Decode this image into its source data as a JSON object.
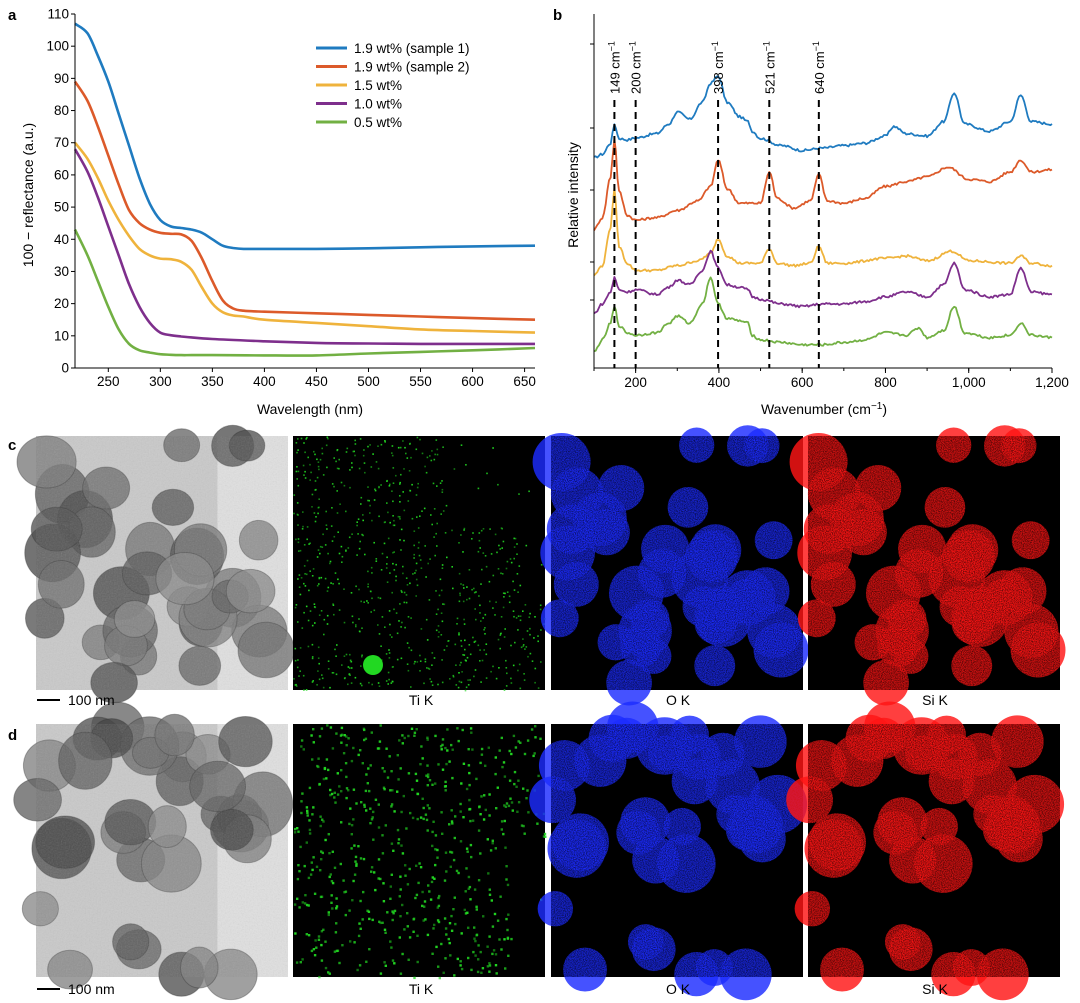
{
  "panels": {
    "a": "a",
    "b": "b",
    "c": "c",
    "d": "d"
  },
  "colors": {
    "s1": "#1f7bc0",
    "s2": "#dc5a2a",
    "s3": "#efb33c",
    "s4": "#7e2f8c",
    "s5": "#72b043",
    "ti": "#22d822",
    "o": "#1c2cff",
    "si": "#ff1515"
  },
  "chart_data": [
    {
      "type": "line",
      "xlabel": "Wavelength (nm)",
      "ylabel": "100 − reflectance (a.u.)",
      "xlim": [
        218,
        660
      ],
      "ylim": [
        0,
        110
      ],
      "xticks": [
        "250",
        "300",
        "350",
        "400",
        "450",
        "500",
        "550",
        "600",
        "650"
      ],
      "yticks": [
        "0",
        "10",
        "20",
        "30",
        "40",
        "50",
        "60",
        "70",
        "80",
        "90",
        "100",
        "110"
      ],
      "legend_position": "top-right",
      "series": [
        {
          "name": "1.9 wt% (sample 1)",
          "color_key": "s1",
          "x": [
            218,
            230,
            240,
            250,
            260,
            270,
            280,
            290,
            300,
            310,
            320,
            330,
            340,
            350,
            360,
            370,
            380,
            400,
            450,
            500,
            550,
            600,
            660
          ],
          "y": [
            107,
            104,
            97,
            89,
            79,
            69,
            59,
            51,
            46,
            44,
            43.5,
            43,
            42,
            40,
            38,
            37.3,
            37,
            37,
            37,
            37.2,
            37.5,
            37.8,
            38
          ]
        },
        {
          "name": "1.9 wt% (sample 2)",
          "color_key": "s2",
          "x": [
            218,
            230,
            240,
            250,
            260,
            270,
            280,
            290,
            300,
            310,
            320,
            330,
            340,
            350,
            360,
            370,
            380,
            400,
            450,
            500,
            550,
            600,
            660
          ],
          "y": [
            89,
            83,
            75,
            66,
            57,
            49,
            45,
            43,
            42,
            41.7,
            41.5,
            39.5,
            34,
            27,
            21,
            18.5,
            17.8,
            17.5,
            17,
            16.5,
            16,
            15.5,
            15
          ]
        },
        {
          "name": "1.5 wt%",
          "color_key": "s3",
          "x": [
            218,
            230,
            240,
            250,
            260,
            270,
            280,
            290,
            300,
            310,
            320,
            330,
            340,
            350,
            360,
            370,
            380,
            400,
            450,
            500,
            550,
            600,
            660
          ],
          "y": [
            70,
            65,
            59,
            52,
            46,
            41,
            37,
            35,
            34,
            33.8,
            33,
            30.5,
            25,
            20,
            17.3,
            16.3,
            16,
            15,
            14,
            13,
            12,
            11.5,
            11
          ]
        },
        {
          "name": "1.0 wt%",
          "color_key": "s4",
          "x": [
            218,
            230,
            240,
            250,
            260,
            270,
            280,
            290,
            300,
            310,
            320,
            330,
            350,
            400,
            450,
            500,
            550,
            600,
            660
          ],
          "y": [
            68,
            61,
            53,
            44,
            35,
            26,
            19,
            14,
            11,
            10.2,
            9.8,
            9.5,
            9,
            8.3,
            7.8,
            7.6,
            7.5,
            7.5,
            7.5
          ]
        },
        {
          "name": "0.5 wt%",
          "color_key": "s5",
          "x": [
            218,
            230,
            240,
            250,
            260,
            270,
            280,
            290,
            300,
            310,
            320,
            330,
            350,
            400,
            450,
            500,
            550,
            600,
            660
          ],
          "y": [
            43,
            35,
            27,
            19,
            12,
            7.5,
            5.5,
            4.8,
            4.3,
            4.1,
            4,
            4,
            4,
            3.9,
            3.9,
            4.5,
            5,
            5.5,
            6.2
          ]
        }
      ]
    },
    {
      "type": "line",
      "xlabel": "Wavenumber (cm−1)",
      "ylabel": "Relative intensity",
      "xlim": [
        100,
        1200
      ],
      "xticks": [
        "200",
        "400",
        "600",
        "800",
        "1,000",
        "1,200"
      ],
      "annotations": [
        {
          "x": 149,
          "label": "149 cm−1"
        },
        {
          "x": 200,
          "label": "200 cm−1"
        },
        {
          "x": 398,
          "label": "398 cm−1"
        },
        {
          "x": 521,
          "label": "521 cm−1"
        },
        {
          "x": 640,
          "label": "640 cm−1"
        }
      ],
      "series": [
        {
          "color_key": "s1",
          "offset": 4.0,
          "x": [
            100,
            120,
            140,
            149,
            160,
            180,
            200,
            250,
            280,
            300,
            330,
            360,
            380,
            398,
            420,
            450,
            470,
            480,
            500,
            550,
            600,
            650,
            700,
            750,
            800,
            820,
            850,
            900,
            940,
            965,
            990,
            1050,
            1100,
            1125,
            1150,
            1200
          ],
          "y": [
            0.05,
            0.12,
            0.35,
            0.75,
            0.45,
            0.42,
            0.46,
            0.55,
            0.75,
            1.0,
            0.85,
            1.2,
            1.6,
            1.75,
            1.2,
            0.9,
            0.8,
            0.6,
            0.45,
            0.3,
            0.2,
            0.25,
            0.3,
            0.35,
            0.5,
            0.7,
            0.55,
            0.5,
            0.8,
            1.4,
            0.75,
            0.6,
            0.8,
            1.35,
            0.8,
            0.75
          ]
        },
        {
          "color_key": "s2",
          "offset": 2.55,
          "x": [
            100,
            120,
            140,
            149,
            160,
            180,
            200,
            250,
            300,
            350,
            380,
            398,
            420,
            450,
            500,
            521,
            540,
            580,
            620,
            640,
            660,
            700,
            750,
            800,
            850,
            900,
            950,
            1000,
            1050,
            1100,
            1125,
            1150,
            1200
          ],
          "y": [
            0.0,
            0.25,
            1.1,
            1.9,
            0.8,
            0.3,
            0.2,
            0.25,
            0.4,
            0.6,
            0.9,
            1.45,
            0.85,
            0.55,
            0.55,
            1.2,
            0.65,
            0.45,
            0.6,
            1.15,
            0.6,
            0.55,
            0.65,
            0.9,
            1.0,
            1.1,
            1.3,
            1.05,
            1.0,
            1.2,
            1.45,
            1.2,
            1.25
          ]
        },
        {
          "color_key": "s3",
          "offset": 1.6,
          "x": [
            100,
            120,
            140,
            149,
            160,
            180,
            200,
            250,
            300,
            350,
            380,
            398,
            420,
            450,
            500,
            521,
            540,
            580,
            620,
            640,
            660,
            700,
            800,
            850,
            900,
            960,
            1000,
            1100,
            1125,
            1150,
            1200
          ],
          "y": [
            0.0,
            0.2,
            1.0,
            1.8,
            0.6,
            0.25,
            0.1,
            0.1,
            0.2,
            0.3,
            0.45,
            0.75,
            0.4,
            0.25,
            0.25,
            0.55,
            0.25,
            0.2,
            0.25,
            0.6,
            0.25,
            0.25,
            0.35,
            0.4,
            0.3,
            0.5,
            0.3,
            0.25,
            0.4,
            0.25,
            0.2
          ]
        },
        {
          "color_key": "s4",
          "offset": 0.8,
          "x": [
            100,
            120,
            140,
            149,
            160,
            180,
            200,
            250,
            280,
            300,
            330,
            360,
            380,
            398,
            420,
            450,
            470,
            480,
            500,
            550,
            600,
            650,
            700,
            750,
            800,
            850,
            900,
            940,
            965,
            990,
            1050,
            1100,
            1125,
            1150,
            1200
          ],
          "y": [
            0.0,
            0.2,
            0.45,
            0.75,
            0.5,
            0.45,
            0.5,
            0.4,
            0.55,
            0.7,
            0.6,
            0.9,
            1.3,
            0.95,
            0.6,
            0.55,
            0.5,
            0.35,
            0.3,
            0.2,
            0.15,
            0.2,
            0.2,
            0.25,
            0.35,
            0.45,
            0.35,
            0.6,
            1.05,
            0.5,
            0.35,
            0.4,
            0.95,
            0.45,
            0.4
          ]
        },
        {
          "color_key": "s5",
          "offset": 0.0,
          "x": [
            100,
            120,
            140,
            149,
            160,
            180,
            200,
            250,
            280,
            300,
            330,
            360,
            380,
            398,
            420,
            450,
            470,
            480,
            500,
            550,
            600,
            650,
            700,
            750,
            800,
            850,
            880,
            900,
            940,
            965,
            990,
            1050,
            1100,
            1125,
            1150,
            1200
          ],
          "y": [
            0.0,
            0.25,
            0.6,
            0.95,
            0.55,
            0.4,
            0.35,
            0.4,
            0.6,
            0.75,
            0.6,
            1.0,
            1.55,
            1.0,
            0.7,
            0.65,
            0.6,
            0.35,
            0.25,
            0.2,
            0.15,
            0.15,
            0.2,
            0.25,
            0.4,
            0.35,
            0.5,
            0.3,
            0.45,
            0.95,
            0.4,
            0.3,
            0.35,
            0.6,
            0.35,
            0.3
          ]
        }
      ]
    }
  ],
  "maps": {
    "c": {
      "scalebar": "100 nm",
      "labels": [
        "Ti K",
        "O K",
        "Si K"
      ]
    },
    "d": {
      "scalebar": "100 nm",
      "labels": [
        "Ti K",
        "O K",
        "Si K"
      ]
    }
  }
}
